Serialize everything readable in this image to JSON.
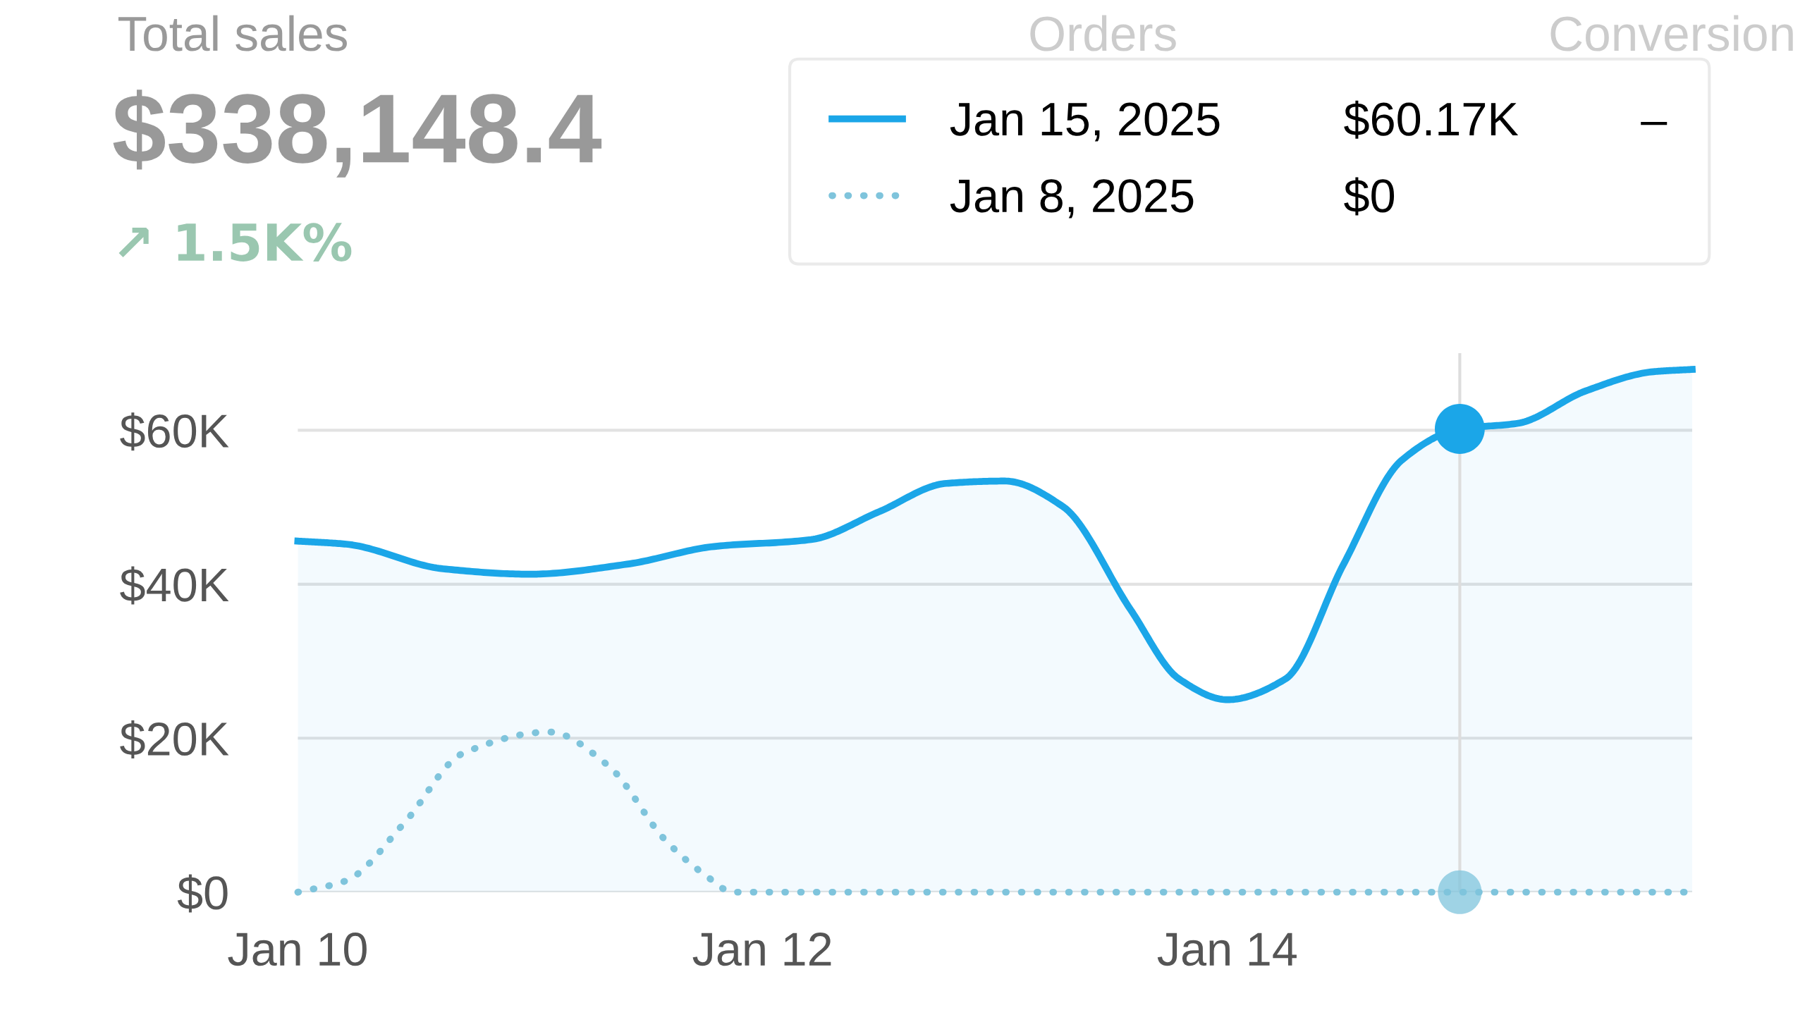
{
  "chart_data": {
    "type": "line",
    "title": "Total sales",
    "subtitle": "$338,148.4",
    "annotations": [
      "↗ 1.5K%",
      "Orders",
      "Conversion",
      "$60.17K",
      "–",
      "$0"
    ],
    "xlim": [
      "2025-01-10T00:00",
      "2025-01-16T00:00"
    ],
    "xticks": [
      {
        "value": "2025-01-10",
        "label": "Jan 10"
      },
      {
        "value": "2025-01-12",
        "label": "Jan 12"
      },
      {
        "value": "2025-01-14",
        "label": "Jan 14"
      }
    ],
    "ylim": [
      0,
      70000
    ],
    "yticks": [
      {
        "value": 0,
        "label": "$0"
      },
      {
        "value": 20000,
        "label": "$20K"
      },
      {
        "value": 40000,
        "label": "$40K"
      },
      {
        "value": 60000,
        "label": "$60K"
      }
    ],
    "grid": "y",
    "legend": "top right",
    "ref_lines": [
      {
        "axis": "x",
        "value": "2025-01-15T00:00",
        "label": null,
        "color": "#dddddd"
      }
    ],
    "series": [
      {
        "name": "Jan 15, 2025",
        "type": "area",
        "color": "#1ba6e8",
        "line_style": "solid",
        "x": [
          "2025-01-10T00:00",
          "2025-01-10T05:00",
          "2025-01-10T15:00",
          "2025-01-11T00:00",
          "2025-01-11T10:00",
          "2025-01-11T19:00",
          "2025-01-12T05:00",
          "2025-01-12T12:00",
          "2025-01-12T19:00",
          "2025-01-13T01:00",
          "2025-01-13T07:00",
          "2025-01-13T14:00",
          "2025-01-13T19:00",
          "2025-01-14T00:00",
          "2025-01-14T06:00",
          "2025-01-14T12:00",
          "2025-01-14T18:00",
          "2025-01-15T00:00",
          "2025-01-15T06:00",
          "2025-01-15T13:00",
          "2025-01-15T20:00",
          "2025-01-16T00:00"
        ],
        "values": [
          45600,
          45200,
          42000,
          41300,
          42600,
          44900,
          45800,
          49400,
          53100,
          53400,
          50100,
          36700,
          27700,
          25000,
          27700,
          42600,
          56100,
          60170,
          60900,
          65100,
          67600,
          67900
        ]
      },
      {
        "name": "Jan 8, 2025",
        "color": "#7fc4dc",
        "line_style": "dotted",
        "x": [
          "2025-01-10T00:00",
          "2025-01-10T05:00",
          "2025-01-10T11:00",
          "2025-01-10T17:00",
          "2025-01-11T02:00",
          "2025-01-11T08:00",
          "2025-01-11T14:00",
          "2025-01-11T18:00",
          "2025-01-11T21:00",
          "2025-01-12T12:00",
          "2025-01-13T12:00",
          "2025-01-14T12:00",
          "2025-01-15T00:00",
          "2025-01-16T00:00"
        ],
        "values": [
          0,
          1500,
          9000,
          18000,
          20800,
          16500,
          6700,
          2300,
          0,
          0,
          0,
          0,
          0,
          0
        ]
      },
      {
        "type": "scatter",
        "color": "#1ba6e8",
        "x": [
          "2025-01-15T00:00"
        ],
        "values": [
          60170
        ]
      },
      {
        "type": "scatter",
        "color": "#7fc4dc",
        "x": [
          "2025-01-15T00:00"
        ],
        "values": [
          0
        ]
      }
    ]
  }
}
